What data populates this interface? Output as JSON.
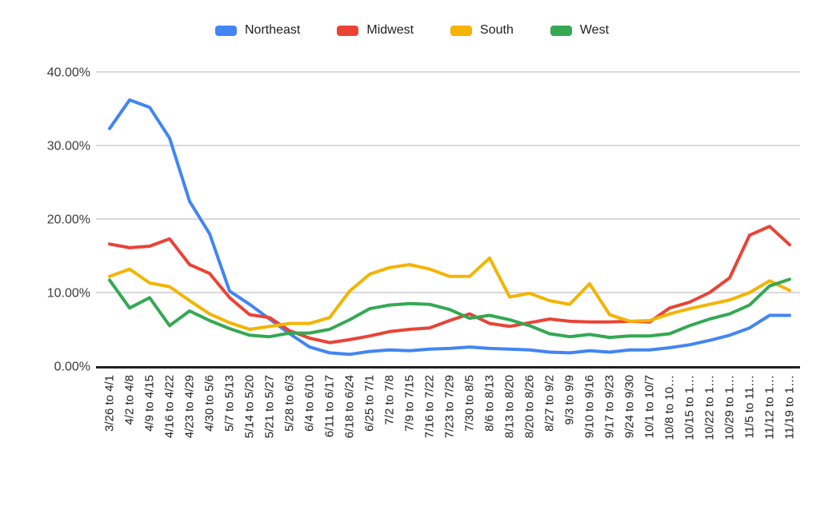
{
  "legend": {
    "items": [
      {
        "label": "Northeast"
      },
      {
        "label": "Midwest"
      },
      {
        "label": "South"
      },
      {
        "label": "West"
      }
    ]
  },
  "colors": {
    "northeast": "#4285f4",
    "midwest": "#ea4335",
    "south": "#f4b400",
    "west": "#34a853",
    "gridline": "#d9d9d9",
    "axis_line": "#212121",
    "axis_text": "#3c3c3c"
  },
  "chart_data": {
    "type": "line",
    "title": "",
    "xlabel": "",
    "ylabel": "",
    "ylim": [
      0,
      40
    ],
    "grid": true,
    "legend_position": "top",
    "y_ticks": [
      {
        "value": 0,
        "label": "0.00%"
      },
      {
        "value": 10,
        "label": "10.00%"
      },
      {
        "value": 20,
        "label": "20.00%"
      },
      {
        "value": 30,
        "label": "30.00%"
      },
      {
        "value": 40,
        "label": "40.00%"
      }
    ],
    "categories": [
      "3/26 to 4/1",
      "4/2 to 4/8",
      "4/9 to 4/15",
      "4/16 to 4/22",
      "4/23 to 4/29",
      "4/30 to 5/6",
      "5/7 to 5/13",
      "5/14 to 5/20",
      "5/21 to 5/27",
      "5/28 to 6/3",
      "6/4 to 6/10",
      "6/11 to 6/17",
      "6/18 to 6/24",
      "6/25 to 7/1",
      "7/2 to 7/8",
      "7/9 to 7/15",
      "7/16 to 7/22",
      "7/23 to 7/29",
      "7/30 to 8/5",
      "8/6 to 8/13",
      "8/13 to 8/20",
      "8/20 to 8/26",
      "8/27 to 9/2",
      "9/3 to 9/9",
      "9/10 to 9/16",
      "9/17 to 9/23",
      "9/24 to 9/30",
      "10/1 to 10/7",
      "10/8 to 10…",
      "10/15 to 1…",
      "10/22 to 1…",
      "10/29 to 1…",
      "11/5 to 11…",
      "11/12 to 1…",
      "11/19 to 1…"
    ],
    "series": [
      {
        "name": "Northeast",
        "color": "#4285f4",
        "values": [
          32.3,
          36.2,
          35.2,
          31.0,
          22.4,
          18.0,
          10.2,
          8.4,
          6.4,
          4.4,
          2.6,
          1.8,
          1.6,
          2.0,
          2.2,
          2.1,
          2.3,
          2.4,
          2.6,
          2.4,
          2.3,
          2.2,
          1.9,
          1.8,
          2.1,
          1.9,
          2.2,
          2.2,
          2.5,
          2.9,
          3.5,
          4.2,
          5.2,
          6.9,
          6.9
        ]
      },
      {
        "name": "Midwest",
        "color": "#ea4335",
        "values": [
          16.6,
          16.1,
          16.3,
          17.3,
          13.8,
          12.6,
          9.3,
          7.0,
          6.6,
          4.8,
          3.8,
          3.2,
          3.6,
          4.1,
          4.7,
          5.0,
          5.2,
          6.2,
          7.1,
          5.8,
          5.4,
          5.9,
          6.4,
          6.1,
          6.0,
          6.0,
          6.1,
          6.0,
          7.9,
          8.7,
          10.0,
          12.0,
          17.8,
          19.0,
          16.5
        ]
      },
      {
        "name": "South",
        "color": "#f4b400",
        "values": [
          12.2,
          13.2,
          11.3,
          10.8,
          8.9,
          7.1,
          5.9,
          5.0,
          5.4,
          5.8,
          5.8,
          6.6,
          10.2,
          12.5,
          13.4,
          13.8,
          13.2,
          12.2,
          12.2,
          14.7,
          9.4,
          9.9,
          8.9,
          8.4,
          11.2,
          7.0,
          6.1,
          6.2,
          7.1,
          7.8,
          8.4,
          9.0,
          10.0,
          11.6,
          10.3
        ]
      },
      {
        "name": "West",
        "color": "#34a853",
        "values": [
          11.7,
          7.9,
          9.3,
          5.5,
          7.5,
          6.2,
          5.1,
          4.2,
          4.0,
          4.5,
          4.5,
          5.0,
          6.3,
          7.8,
          8.3,
          8.5,
          8.4,
          7.7,
          6.5,
          6.9,
          6.3,
          5.5,
          4.4,
          4.0,
          4.3,
          3.9,
          4.1,
          4.1,
          4.4,
          5.5,
          6.4,
          7.1,
          8.3,
          10.9,
          11.8
        ]
      }
    ]
  }
}
